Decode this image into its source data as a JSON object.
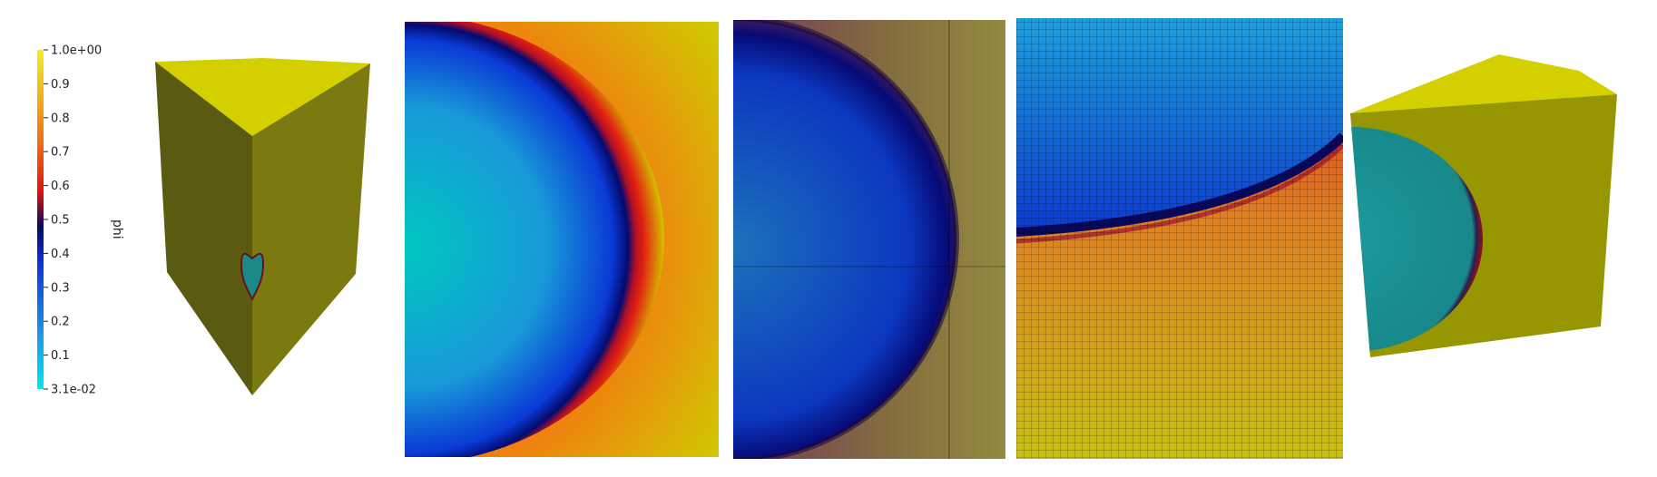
{
  "colorbar": {
    "title": "phi",
    "max_label": "1.0e+00",
    "min_label": "3.1e-02",
    "tick_labels": [
      "0.9",
      "0.8",
      "0.7",
      "0.6",
      "0.5",
      "0.4",
      "0.3",
      "0.2",
      "0.1"
    ],
    "colormap": [
      "#00e8f0",
      "#1a8fe6",
      "#0a2ed6",
      "#080860",
      "#e01010",
      "#f06a10",
      "#f0b018",
      "#f0f020"
    ]
  },
  "colors": {
    "phase_high": "#cfcb00",
    "phase_low": "#00c8c0",
    "wedge_top": "#d4d000",
    "wedge_left": "#5a5a10",
    "wedge_right": "#7a7a10",
    "droplet_fill": "#1a8a88",
    "droplet_rim": "#6a1020"
  }
}
